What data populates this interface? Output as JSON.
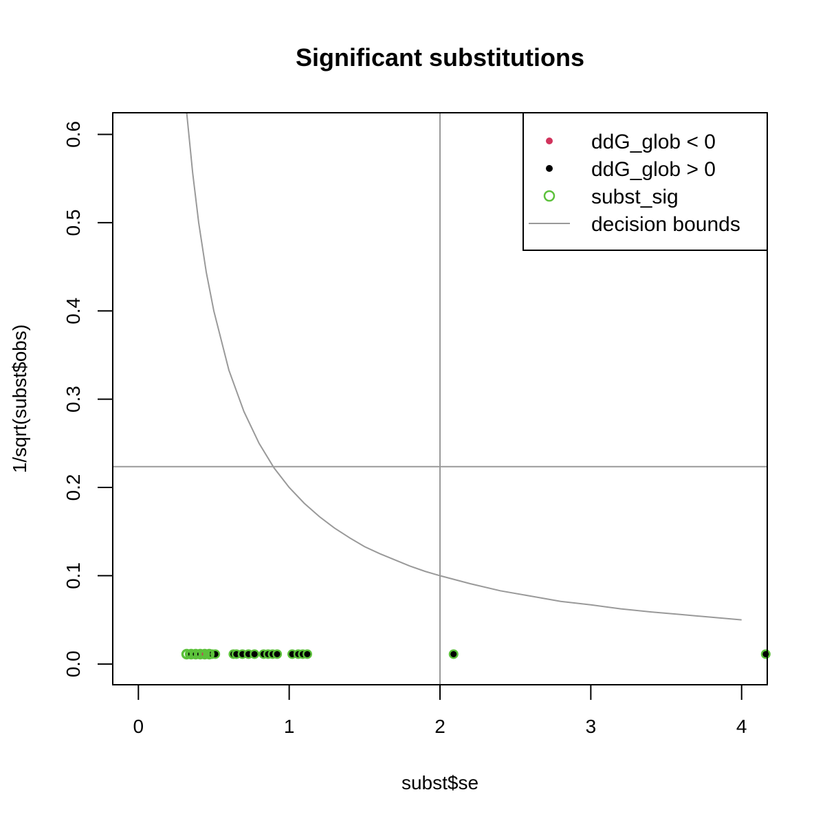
{
  "chart_data": {
    "type": "scatter",
    "title": "Significant substitutions",
    "xlabel": "subst$se",
    "ylabel": "1/sqrt(subst$obs)",
    "xlim": [
      -0.17,
      4.17
    ],
    "ylim": [
      -0.0235,
      0.6245
    ],
    "x_ticks": [
      0,
      1,
      2,
      3,
      4
    ],
    "x_tick_labels": [
      "0",
      "1",
      "2",
      "3",
      "4"
    ],
    "y_ticks": [
      0.0,
      0.1,
      0.2,
      0.3,
      0.4,
      0.5,
      0.6
    ],
    "y_tick_labels": [
      "0.0",
      "0.1",
      "0.2",
      "0.3",
      "0.4",
      "0.5",
      "0.6"
    ],
    "grid": false,
    "legend_position": "top-right",
    "colors": {
      "neg": "#d1335c",
      "pos": "#000000",
      "sig": "#5cc13b",
      "bounds": "#999999"
    },
    "legend": [
      {
        "label": "ddG_glob < 0",
        "symbol": "dot",
        "color": "#d1335c"
      },
      {
        "label": "ddG_glob > 0",
        "symbol": "dot",
        "color": "#000000"
      },
      {
        "label": "subst_sig",
        "symbol": "circle",
        "color": "#5cc13b"
      },
      {
        "label": "decision bounds",
        "symbol": "line",
        "color": "#999999"
      }
    ],
    "decision_bounds": {
      "vertical_x": 2.0,
      "horizontal_y": 0.2236,
      "curve": {
        "x": [
          0.32,
          0.36,
          0.4,
          0.45,
          0.5,
          0.6,
          0.7,
          0.8,
          0.9,
          1.0,
          1.1,
          1.2,
          1.3,
          1.4,
          1.5,
          1.6,
          1.7,
          1.8,
          1.9,
          2.0,
          2.2,
          2.4,
          2.6,
          2.8,
          3.0,
          3.2,
          3.4,
          3.6,
          3.8,
          4.0
        ],
        "y": [
          0.625,
          0.556,
          0.5,
          0.444,
          0.4,
          0.333,
          0.286,
          0.25,
          0.222,
          0.2,
          0.182,
          0.167,
          0.154,
          0.143,
          0.133,
          0.125,
          0.118,
          0.111,
          0.105,
          0.1,
          0.091,
          0.083,
          0.077,
          0.071,
          0.067,
          0.0625,
          0.059,
          0.056,
          0.053,
          0.05
        ]
      }
    },
    "series": [
      {
        "name": "ddG_glob > 0",
        "x": [
          0.34,
          0.37,
          0.4,
          0.46,
          0.49,
          0.51,
          0.63,
          0.65,
          0.69,
          0.73,
          0.77,
          0.83,
          0.86,
          0.89,
          0.92,
          1.02,
          1.06,
          1.09,
          1.12,
          2.09,
          4.16
        ],
        "y": [
          0.0112,
          0.0112,
          0.0112,
          0.0112,
          0.0112,
          0.0112,
          0.0112,
          0.0112,
          0.0112,
          0.0112,
          0.0112,
          0.0112,
          0.0112,
          0.0112,
          0.0112,
          0.0112,
          0.0112,
          0.0112,
          0.0112,
          0.0112,
          0.0112
        ]
      },
      {
        "name": "ddG_glob < 0",
        "x": [
          0.43
        ],
        "y": [
          0.0112
        ]
      },
      {
        "name": "subst_sig",
        "x": [
          0.32,
          0.35,
          0.38,
          0.41,
          0.44,
          0.47
        ],
        "y": [
          0.0112,
          0.0112,
          0.0112,
          0.0112,
          0.0112,
          0.0112
        ]
      }
    ]
  }
}
